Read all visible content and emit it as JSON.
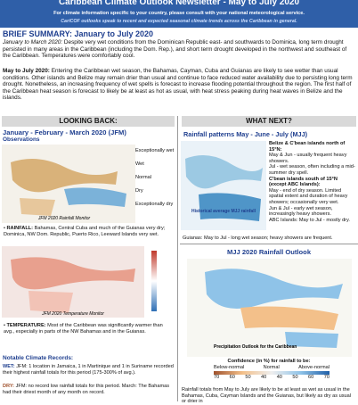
{
  "header": {
    "title": "Caribbean Climate Outlook Newsletter - May to July 2020",
    "lines": [
      "For climate information specific to your country, please consult with your national meteorological service.",
      "CariCOF outlooks speak to recent and expected seasonal climate trends across the Caribbean in general."
    ]
  },
  "summary": {
    "heading": "BRIEF SUMMARY: January to July 2020",
    "paragraphs": [
      {
        "lead": "January to March 2020:",
        "text": "Despite very wet conditions from the Dominican Republic east- and southwards to Dominica, long term drought persisted in many areas in the Caribbean (including the Dom. Rep.), and short term drought developed in the northwest and southeast of the Caribbean. Temperatures were comfortably cool."
      },
      {
        "lead": "May to July 2020:",
        "text": "Entering the Caribbean wet season, the Bahamas, Cayman, Cuba and Guianas are likely to see wetter than usual conditions. Other islands and Belize may remain drier than usual and continue to face reduced water availability due to persisting long term drought. Nonetheless, an increasing frequency of wet spells is forecast to increase flooding potential throughout the region. The first half of the Caribbean heat season is forecast to likely be at least as hot as usual, with heat stress peaking during heat waves in Belize and the islands."
      }
    ]
  },
  "left": {
    "heading": "LOOKING BACK:",
    "period": "January - February - March 2020 (JFM)",
    "sub": "Observations",
    "legend": [
      "Exceptionally wet",
      "Wet",
      "Normal",
      "Dry",
      "Exceptionally dry"
    ],
    "map1_caption": "JFM 2020 Rainfall Monitor",
    "rainfall": {
      "lead": "RAINFALL:",
      "text": "Bahamas, Central Cuba and much of the Guianas very dry; Dominica, NW Dom. Republic, Puerto Rico, Leeward Islands very wet."
    },
    "map2_caption": "JFM 2020 Temperature Monitor",
    "temperature": {
      "lead": "TEMPERATURE:",
      "text": "Most of the Caribbean was significantly warmer than avg., especially in parts of the NW Bahamas and in the Guianas."
    },
    "records_heading": "Notable Climate Records:",
    "wet": {
      "lead": "WET:",
      "text": "JFM: 1 location in Jamaica, 1 in Martinique and 1 in Suriname recorded their highest rainfall totals for this period (175-300% of avg.)."
    },
    "dry": {
      "lead": "DRY:",
      "text": "JFM: no record low rainfall totals for this period. March: The Bahamas had their driest month of any month on record."
    }
  },
  "right": {
    "heading": "WHAT NEXT?",
    "patterns": "Rainfall patterns May - June - July (MJJ)",
    "map_caption": "Historical average MJJ rainfall",
    "notes": [
      "Belize & C'bean islands north of 15°N:",
      "May & Jun - usually frequent heavy showers.",
      "Jul - wet season, often including a mid-summer dry spell.",
      "C'bean islands south of 15°N (except ABC Islands):",
      "May - end of dry season. Limited spatial extent and duration of heavy showers; occasionally very wet.",
      "Jun & Jul - early wet season, increasingly heavy showers.",
      "ABC Islands: May to Jul - mostly dry."
    ],
    "guianas": "Guianas: May to Jul - long wet season; heavy showers are frequent.",
    "outlook_title": "MJJ 2020 Rainfall Outlook",
    "outlook_map_caption": "Precipitation Outlook for the Caribbean",
    "confidence": "Confidence (in %) for rainfall to be:",
    "categories": [
      "Below-normal",
      "Normal",
      "Above-normal"
    ],
    "scale": [
      "70",
      "60",
      "50",
      "40",
      "40",
      "50",
      "60",
      "70"
    ],
    "bottom": "Rainfall totals from May to July are likely to be at least as wet as usual in the Bahamas, Cuba, Cayman Islands and the Guianas, but likely as dry as usual or drier in"
  }
}
